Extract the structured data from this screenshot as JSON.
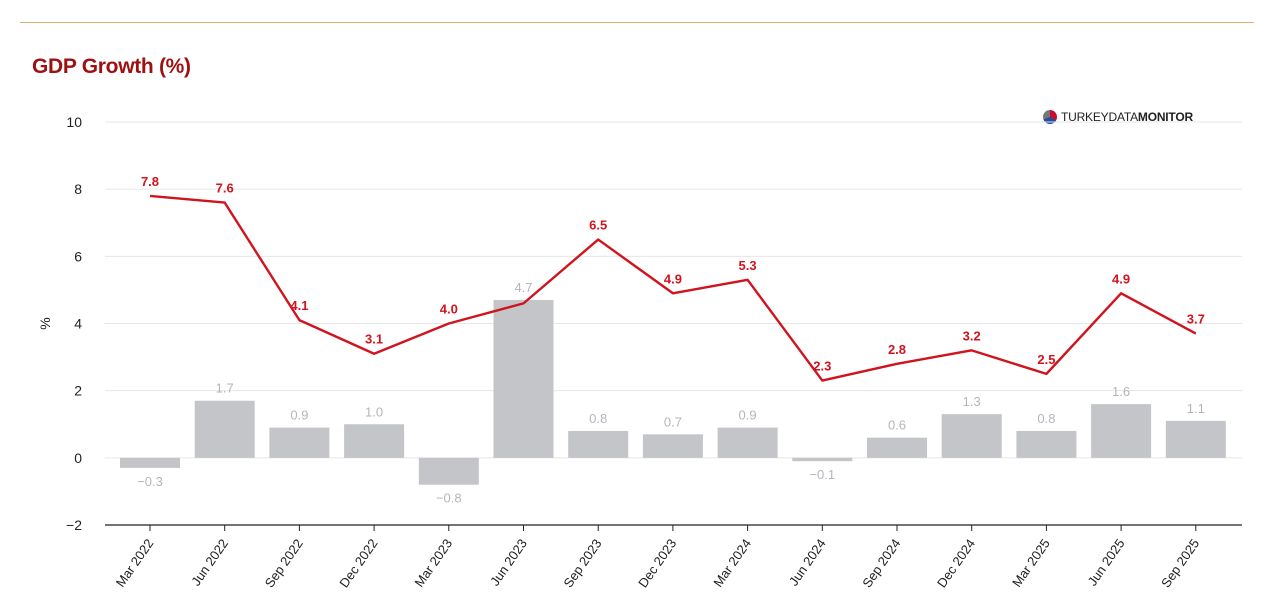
{
  "header": {
    "title": "GDP Growth (%)",
    "brand_light": "TURKEYDATA",
    "brand_bold": "MONITOR"
  },
  "chart_data": {
    "type": "bar",
    "title": "GDP Growth (%)",
    "xlabel": "",
    "ylabel": "%",
    "ylim": [
      -2,
      10
    ],
    "yticks": [
      -2,
      0,
      2,
      4,
      6,
      8,
      10
    ],
    "grid": true,
    "legend": "none",
    "categories": [
      "Mar 2022",
      "Jun 2022",
      "Sep 2022",
      "Dec 2022",
      "Mar 2023",
      "Jun 2023",
      "Sep 2023",
      "Dec 2023",
      "Mar 2024",
      "Jun 2024",
      "Sep 2024",
      "Dec 2024",
      "Mar 2025",
      "Jun 2025",
      "Sep 2025"
    ],
    "series": [
      {
        "type": "bar",
        "color": "#c4c5c9",
        "label_color": "#b4b6bb",
        "values": [
          -0.3,
          1.7,
          0.9,
          1.0,
          -0.8,
          4.7,
          0.8,
          0.7,
          0.9,
          -0.1,
          0.6,
          1.3,
          0.8,
          1.6,
          1.1
        ],
        "labels": [
          "−0.3",
          "1.7",
          "0.9",
          "1.0",
          "−0.8",
          "4.7",
          "0.8",
          "0.7",
          "0.9",
          "−0.1",
          "0.6",
          "1.3",
          "0.8",
          "1.6",
          "1.1"
        ]
      },
      {
        "type": "line",
        "color": "#d0141e",
        "values": [
          7.8,
          7.6,
          4.1,
          3.1,
          4.0,
          4.6,
          6.5,
          4.9,
          5.3,
          2.3,
          2.8,
          3.2,
          2.5,
          4.9,
          3.7
        ],
        "labels": [
          "7.8",
          "7.6",
          "4.1",
          "3.1",
          "4.0",
          "",
          "6.5",
          "4.9",
          "5.3",
          "2.3",
          "2.8",
          "3.2",
          "2.5",
          "4.9",
          "3.7"
        ]
      }
    ]
  }
}
